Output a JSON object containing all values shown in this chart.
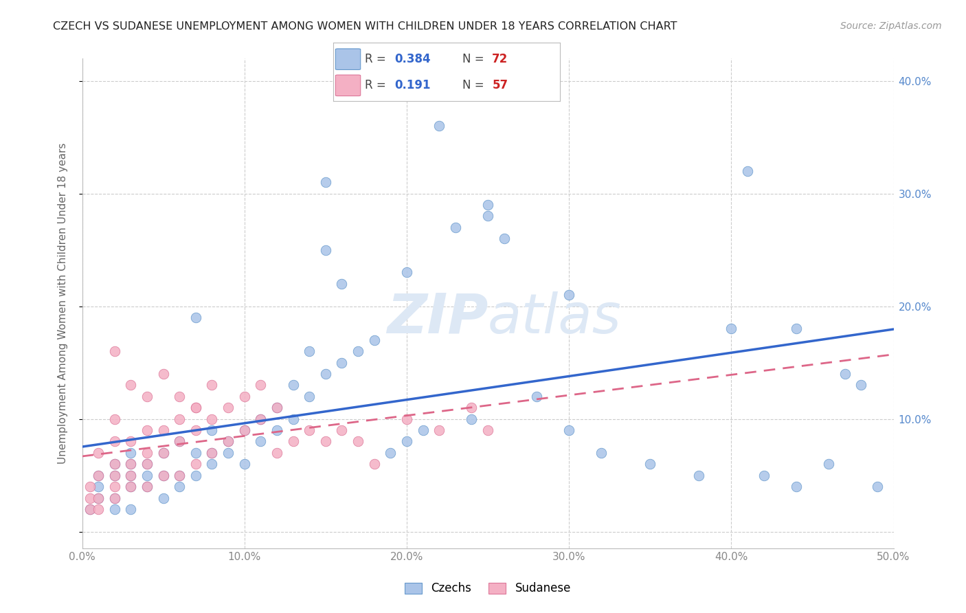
{
  "title": "CZECH VS SUDANESE UNEMPLOYMENT AMONG WOMEN WITH CHILDREN UNDER 18 YEARS CORRELATION CHART",
  "source": "Source: ZipAtlas.com",
  "ylabel": "Unemployment Among Women with Children Under 18 years",
  "xlim": [
    0.0,
    0.5
  ],
  "ylim": [
    -0.015,
    0.42
  ],
  "czech_R": 0.384,
  "czech_N": 72,
  "sudanese_R": 0.191,
  "sudanese_N": 57,
  "czech_color": "#aac4e8",
  "sudanese_color": "#f4b0c4",
  "czech_edge_color": "#6699cc",
  "sudanese_edge_color": "#dd7799",
  "czech_line_color": "#3366cc",
  "sudanese_line_color": "#dd6688",
  "watermark_color": "#dde8f5",
  "legend_R_color": "#3366cc",
  "legend_N_color": "#cc2222",
  "right_tick_color": "#5588cc",
  "xtick_color": "#888888",
  "ylabel_color": "#666666",
  "grid_color": "#cccccc",
  "title_color": "#222222",
  "source_color": "#999999",
  "czech_x": [
    0.005,
    0.01,
    0.01,
    0.01,
    0.02,
    0.02,
    0.02,
    0.02,
    0.03,
    0.03,
    0.03,
    0.03,
    0.03,
    0.04,
    0.04,
    0.04,
    0.05,
    0.05,
    0.05,
    0.06,
    0.06,
    0.06,
    0.07,
    0.07,
    0.07,
    0.08,
    0.08,
    0.08,
    0.09,
    0.09,
    0.1,
    0.1,
    0.11,
    0.11,
    0.12,
    0.12,
    0.13,
    0.13,
    0.14,
    0.14,
    0.15,
    0.15,
    0.16,
    0.16,
    0.17,
    0.18,
    0.19,
    0.2,
    0.21,
    0.22,
    0.23,
    0.24,
    0.25,
    0.26,
    0.28,
    0.3,
    0.32,
    0.35,
    0.38,
    0.4,
    0.42,
    0.44,
    0.46,
    0.48,
    0.15,
    0.2,
    0.25,
    0.3,
    0.41,
    0.44,
    0.47,
    0.49
  ],
  "czech_y": [
    0.02,
    0.03,
    0.04,
    0.05,
    0.02,
    0.03,
    0.05,
    0.06,
    0.02,
    0.04,
    0.05,
    0.06,
    0.07,
    0.04,
    0.05,
    0.06,
    0.03,
    0.05,
    0.07,
    0.04,
    0.05,
    0.08,
    0.05,
    0.07,
    0.19,
    0.06,
    0.07,
    0.09,
    0.07,
    0.08,
    0.06,
    0.09,
    0.08,
    0.1,
    0.09,
    0.11,
    0.1,
    0.13,
    0.12,
    0.16,
    0.14,
    0.31,
    0.15,
    0.22,
    0.16,
    0.17,
    0.07,
    0.08,
    0.09,
    0.36,
    0.27,
    0.1,
    0.29,
    0.26,
    0.12,
    0.09,
    0.07,
    0.06,
    0.05,
    0.18,
    0.05,
    0.04,
    0.06,
    0.13,
    0.25,
    0.23,
    0.28,
    0.21,
    0.32,
    0.18,
    0.14,
    0.04
  ],
  "sudanese_x": [
    0.005,
    0.005,
    0.005,
    0.01,
    0.01,
    0.01,
    0.01,
    0.02,
    0.02,
    0.02,
    0.02,
    0.02,
    0.02,
    0.03,
    0.03,
    0.03,
    0.03,
    0.04,
    0.04,
    0.04,
    0.04,
    0.05,
    0.05,
    0.05,
    0.06,
    0.06,
    0.06,
    0.07,
    0.07,
    0.07,
    0.08,
    0.08,
    0.09,
    0.09,
    0.1,
    0.1,
    0.11,
    0.11,
    0.12,
    0.12,
    0.13,
    0.14,
    0.15,
    0.16,
    0.17,
    0.18,
    0.2,
    0.22,
    0.24,
    0.25,
    0.02,
    0.03,
    0.04,
    0.05,
    0.06,
    0.07,
    0.08
  ],
  "sudanese_y": [
    0.02,
    0.03,
    0.04,
    0.02,
    0.03,
    0.05,
    0.07,
    0.03,
    0.04,
    0.05,
    0.06,
    0.08,
    0.1,
    0.04,
    0.05,
    0.06,
    0.08,
    0.04,
    0.06,
    0.07,
    0.09,
    0.05,
    0.07,
    0.09,
    0.05,
    0.08,
    0.1,
    0.06,
    0.09,
    0.11,
    0.07,
    0.1,
    0.08,
    0.11,
    0.09,
    0.12,
    0.1,
    0.13,
    0.11,
    0.07,
    0.08,
    0.09,
    0.08,
    0.09,
    0.08,
    0.06,
    0.1,
    0.09,
    0.11,
    0.09,
    0.16,
    0.13,
    0.12,
    0.14,
    0.12,
    0.11,
    0.13
  ]
}
